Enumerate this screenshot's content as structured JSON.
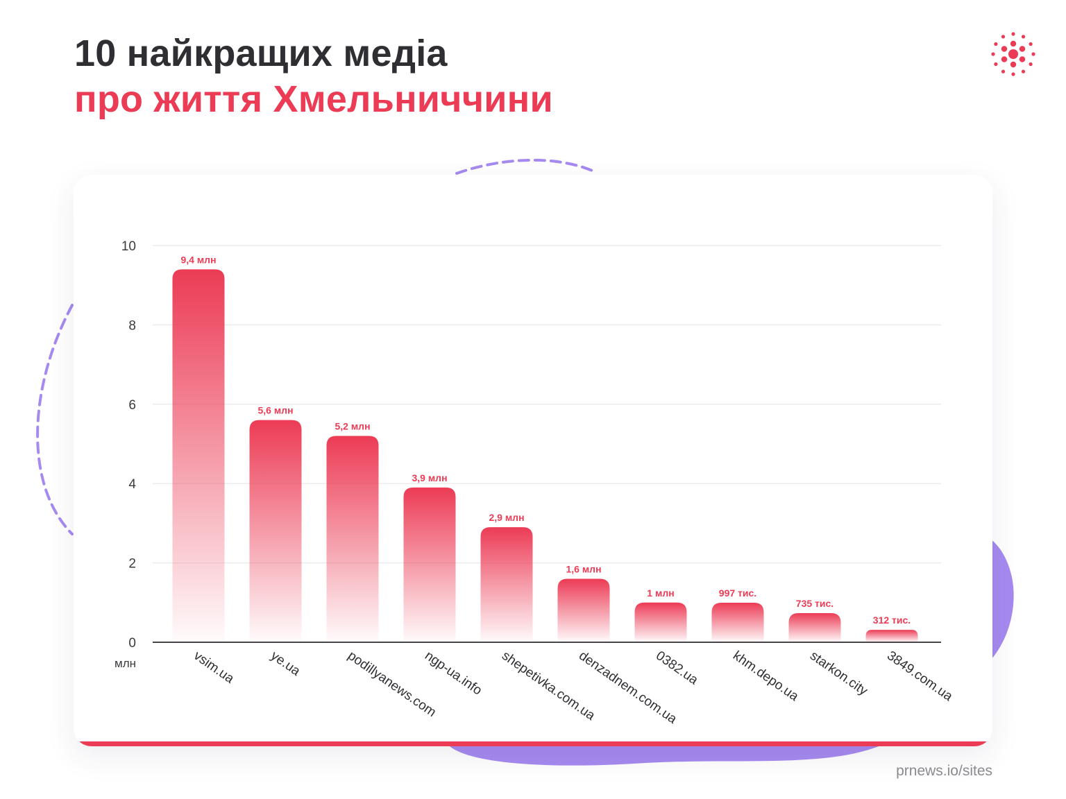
{
  "title": {
    "line1": "10 найкращих медіа",
    "line2": "про життя Хмельниччини"
  },
  "source": "prnews.io/sites",
  "colors": {
    "title_dark": "#2f2f33",
    "accent": "#ec3b55",
    "decor_purple": "#a68af0",
    "grid": "#ececef",
    "tick_text": "#3a3a3f"
  },
  "logo": {
    "icon": "dotted-burst-logo-icon"
  },
  "chart_data": {
    "type": "bar",
    "title": "",
    "xlabel": "",
    "ylabel": "",
    "unit_label": "млн",
    "ylim": [
      0,
      10
    ],
    "yticks": [
      "0",
      "2",
      "4",
      "6",
      "8",
      "10"
    ],
    "grid": true,
    "legend": "none",
    "categories": [
      "vsim.ua",
      "ye.ua",
      "podillyanews.com",
      "ngp-ua.info",
      "shepetivka.com.ua",
      "denzadnem.com.ua",
      "0382.ua",
      "khm.depo.ua",
      "starkon.city",
      "3849.com.ua"
    ],
    "values": [
      9.4,
      5.6,
      5.2,
      3.9,
      2.9,
      1.6,
      1.0,
      0.997,
      0.735,
      0.312
    ],
    "value_labels": [
      "9,4 млн",
      "5,6 млн",
      "5,2 млн",
      "3,9 млн",
      "2,9 млн",
      "1,6 млн",
      "1 млн",
      "997 тис.",
      "735 тис.",
      "312 тис."
    ]
  }
}
